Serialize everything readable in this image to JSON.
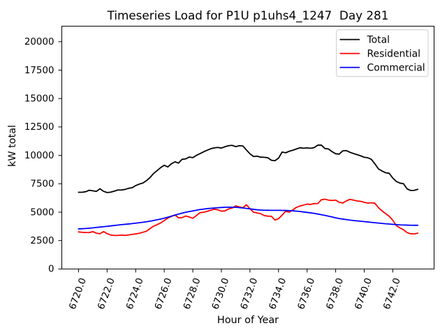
{
  "chart_data": {
    "type": "line",
    "title": "Timeseries Load for P1U p1uhs4_1247  Day 281",
    "xlabel": "Hour of Year",
    "ylabel": "kW total",
    "xlim": [
      6718.83,
      6744.89
    ],
    "ylim": [
      0,
      21370
    ],
    "x_start": 6720.0,
    "x_step": 0.25,
    "xticks": {
      "values": [
        6720,
        6722,
        6724,
        6726,
        6728,
        6730,
        6732,
        6734,
        6736,
        6738,
        6740,
        6742
      ],
      "labels": [
        "6720.0",
        "6722.0",
        "6724.0",
        "6726.0",
        "6728.0",
        "6730.0",
        "6732.0",
        "6734.0",
        "6736.0",
        "6738.0",
        "6740.0",
        "6742.0"
      ],
      "rotation_deg": 70
    },
    "yticks": {
      "values": [
        0,
        2500,
        5000,
        7500,
        10000,
        12500,
        15000,
        17500,
        20000
      ],
      "labels": [
        "0",
        "2500",
        "5000",
        "7500",
        "10000",
        "12500",
        "15000",
        "17500",
        "20000"
      ]
    },
    "grid": false,
    "legend_position": "upper right",
    "series": [
      {
        "name": "Total",
        "color": "#000000",
        "values": [
          6750,
          6750,
          6800,
          6930,
          6880,
          6830,
          7060,
          6840,
          6730,
          6760,
          6850,
          6950,
          6950,
          7000,
          7100,
          7150,
          7340,
          7470,
          7560,
          7770,
          8040,
          8400,
          8660,
          8920,
          9130,
          8980,
          9260,
          9430,
          9320,
          9650,
          9690,
          9850,
          9800,
          10000,
          10150,
          10310,
          10450,
          10580,
          10660,
          10700,
          10640,
          10760,
          10850,
          10880,
          10770,
          10850,
          10830,
          10480,
          10140,
          9900,
          9930,
          9840,
          9830,
          9790,
          9570,
          9530,
          9750,
          10290,
          10230,
          10360,
          10450,
          10560,
          10670,
          10630,
          10660,
          10620,
          10680,
          10900,
          10900,
          10600,
          10560,
          10330,
          10140,
          10110,
          10400,
          10420,
          10270,
          10160,
          10060,
          9960,
          9830,
          9790,
          9650,
          9250,
          8800,
          8620,
          8470,
          8420,
          8000,
          7700,
          7560,
          7500,
          7050,
          6910,
          6920,
          7010
        ]
      },
      {
        "name": "Residential",
        "color": "#ff0000",
        "values": [
          3260,
          3225,
          3210,
          3205,
          3290,
          3150,
          3105,
          3290,
          3110,
          2990,
          2950,
          2955,
          2980,
          2960,
          2995,
          3040,
          3090,
          3140,
          3230,
          3320,
          3550,
          3770,
          3900,
          4050,
          4260,
          4480,
          4620,
          4755,
          4500,
          4520,
          4660,
          4580,
          4460,
          4700,
          4950,
          4990,
          5070,
          5170,
          5260,
          5210,
          5090,
          5110,
          5280,
          5360,
          5550,
          5470,
          5390,
          5650,
          5310,
          5000,
          4930,
          4870,
          4700,
          4650,
          4640,
          4310,
          4420,
          4740,
          5080,
          5000,
          5200,
          5420,
          5540,
          5620,
          5710,
          5680,
          5750,
          5760,
          6090,
          6140,
          6060,
          6030,
          6060,
          5870,
          5810,
          5990,
          6130,
          6060,
          5990,
          5950,
          5870,
          5800,
          5830,
          5780,
          5390,
          5110,
          4870,
          4640,
          4290,
          3810,
          3610,
          3450,
          3200,
          3100,
          3090,
          3150
        ]
      },
      {
        "name": "Commercial",
        "color": "#0000ff",
        "values": [
          3530,
          3545,
          3565,
          3590,
          3620,
          3655,
          3690,
          3720,
          3755,
          3790,
          3830,
          3865,
          3900,
          3930,
          3960,
          3995,
          4030,
          4070,
          4110,
          4155,
          4210,
          4265,
          4330,
          4395,
          4470,
          4555,
          4650,
          4740,
          4830,
          4915,
          4990,
          5055,
          5110,
          5170,
          5230,
          5270,
          5310,
          5340,
          5370,
          5390,
          5410,
          5430,
          5440,
          5440,
          5430,
          5400,
          5370,
          5330,
          5290,
          5250,
          5210,
          5185,
          5170,
          5165,
          5160,
          5160,
          5160,
          5155,
          5150,
          5140,
          5120,
          5090,
          5060,
          5020,
          4980,
          4935,
          4890,
          4835,
          4780,
          4715,
          4650,
          4575,
          4500,
          4440,
          4390,
          4345,
          4300,
          4265,
          4230,
          4200,
          4170,
          4135,
          4100,
          4070,
          4040,
          4010,
          3980,
          3955,
          3930,
          3905,
          3880,
          3870,
          3860,
          3850,
          3845,
          3845
        ]
      }
    ]
  }
}
